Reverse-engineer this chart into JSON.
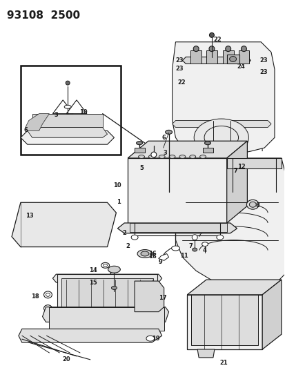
{
  "title": "93108  2500",
  "bg_color": "#ffffff",
  "line_color": "#1a1a1a",
  "title_fontsize": 11,
  "fig_width": 4.14,
  "fig_height": 5.33,
  "dpi": 100
}
